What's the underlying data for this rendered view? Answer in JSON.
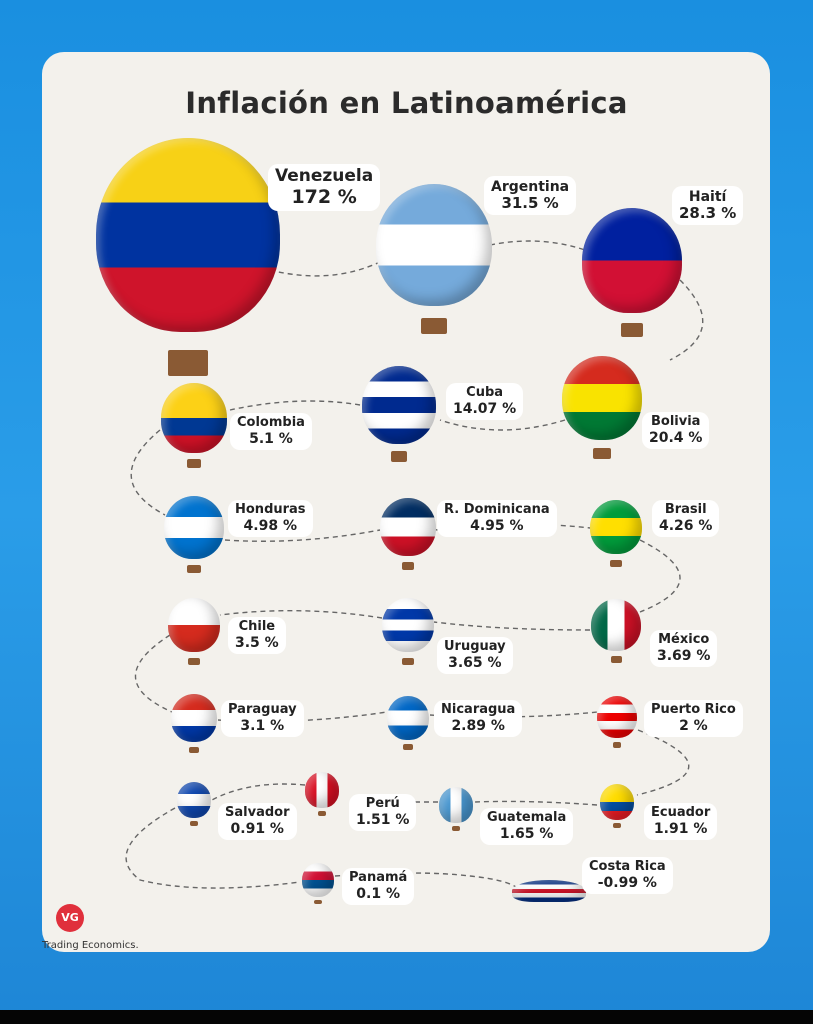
{
  "title": "Inflación en Latinoamérica",
  "countries": [
    {
      "name": "Venezuela",
      "value": "172 %",
      "flag": [
        "#f7d116",
        "#0033a0",
        "#cf142b"
      ]
    },
    {
      "name": "Argentina",
      "value": "31.5 %",
      "flag": [
        "#75aadb",
        "#ffffff",
        "#75aadb"
      ]
    },
    {
      "name": "Haití",
      "value": "28.3 %",
      "flag": [
        "#00209f",
        "#d21034"
      ]
    },
    {
      "name": "Colombia",
      "value": "5.1 %",
      "flag": [
        "#fcd116",
        "#fcd116",
        "#003893",
        "#ce1126"
      ]
    },
    {
      "name": "Cuba",
      "value": "14.07 %",
      "flag": [
        "#002a8f",
        "#ffffff",
        "#002a8f",
        "#ffffff",
        "#002a8f"
      ]
    },
    {
      "name": "Bolivia",
      "value": "20.4 %",
      "flag": [
        "#d52b1e",
        "#f9e300",
        "#007934"
      ]
    },
    {
      "name": "Honduras",
      "value": "4.98 %",
      "flag": [
        "#0073cf",
        "#ffffff",
        "#0073cf"
      ]
    },
    {
      "name": "R. Dominicana",
      "value": "4.95 %",
      "flag": [
        "#002d62",
        "#ffffff",
        "#ce1126"
      ]
    },
    {
      "name": "Brasil",
      "value": "4.26 %",
      "flag": [
        "#009c3b",
        "#ffdf00",
        "#009c3b"
      ]
    },
    {
      "name": "Chile",
      "value": "3.5 %",
      "flag": [
        "#ffffff",
        "#d52b1e"
      ]
    },
    {
      "name": "Uruguay",
      "value": "3.65 %",
      "flag": [
        "#ffffff",
        "#0038a8",
        "#ffffff",
        "#0038a8",
        "#ffffff"
      ]
    },
    {
      "name": "México",
      "value": "3.69 %",
      "flag": [
        "#006847",
        "#ffffff",
        "#ce1126"
      ],
      "vertical": true
    },
    {
      "name": "Paraguay",
      "value": "3.1 %",
      "flag": [
        "#d52b1e",
        "#ffffff",
        "#0038a8"
      ]
    },
    {
      "name": "Nicaragua",
      "value": "2.89 %",
      "flag": [
        "#0067c6",
        "#ffffff",
        "#0067c6"
      ]
    },
    {
      "name": "Puerto Rico",
      "value": "2 %",
      "flag": [
        "#ed0000",
        "#ffffff",
        "#ed0000",
        "#ffffff",
        "#ed0000"
      ]
    },
    {
      "name": "Salvador",
      "value": "0.91 %",
      "flag": [
        "#0f47af",
        "#ffffff",
        "#0f47af"
      ]
    },
    {
      "name": "Perú",
      "value": "1.51 %",
      "flag": [
        "#d91023",
        "#ffffff",
        "#d91023"
      ],
      "vertical": true
    },
    {
      "name": "Guatemala",
      "value": "1.65 %",
      "flag": [
        "#4997d0",
        "#ffffff",
        "#4997d0"
      ],
      "vertical": true
    },
    {
      "name": "Ecuador",
      "value": "1.91 %",
      "flag": [
        "#ffdd00",
        "#ffdd00",
        "#034ea2",
        "#ed1c24"
      ]
    },
    {
      "name": "Panamá",
      "value": "0.1 %",
      "flag": [
        "#ffffff",
        "#d21034",
        "#005293",
        "#ffffff"
      ]
    },
    {
      "name": "Costa Rica",
      "value": "-0.99 %",
      "flag": [
        "#002b7f",
        "#ffffff",
        "#ce1126",
        "#ffffff",
        "#002b7f"
      ]
    }
  ],
  "logo": "VG",
  "source": "Trading Economics."
}
